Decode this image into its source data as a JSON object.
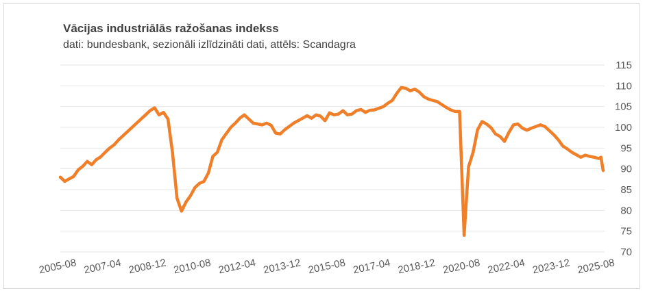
{
  "chart_data": {
    "type": "line",
    "title": "Vācijas industriālās ražošanas indekss",
    "subtitle": "dati: bundesbank, sezionāli izlīdzināti dati, attēls: Scandagra",
    "xlabel": "",
    "ylabel": "",
    "ylim": [
      70,
      115
    ],
    "y_ticks": [
      115,
      110,
      105,
      100,
      95,
      90,
      85,
      80,
      75,
      70
    ],
    "x_tick_labels": [
      "2005-08",
      "2007-04",
      "2008-12",
      "2010-08",
      "2012-04",
      "2013-12",
      "2015-08",
      "2017-04",
      "2018-12",
      "2020-08",
      "2022-04",
      "2023-12",
      "2025-08"
    ],
    "grid": true,
    "line_color": "#f07f2a",
    "series": [
      {
        "name": "Ražošanas indekss",
        "points": [
          [
            "2005-08",
            88.0
          ],
          [
            "2005-10",
            87.0
          ],
          [
            "2005-12",
            87.6
          ],
          [
            "2006-02",
            88.2
          ],
          [
            "2006-04",
            89.8
          ],
          [
            "2006-06",
            90.6
          ],
          [
            "2006-08",
            91.8
          ],
          [
            "2006-10",
            91.0
          ],
          [
            "2006-12",
            92.2
          ],
          [
            "2007-02",
            92.9
          ],
          [
            "2007-04",
            94.0
          ],
          [
            "2007-06",
            95.0
          ],
          [
            "2007-08",
            95.8
          ],
          [
            "2007-10",
            97.0
          ],
          [
            "2007-12",
            98.0
          ],
          [
            "2008-02",
            99.0
          ],
          [
            "2008-04",
            100.0
          ],
          [
            "2008-06",
            101.0
          ],
          [
            "2008-08",
            102.0
          ],
          [
            "2008-10",
            103.0
          ],
          [
            "2008-12",
            104.0
          ],
          [
            "2009-02",
            104.7
          ],
          [
            "2009-04",
            103.0
          ],
          [
            "2009-06",
            103.6
          ],
          [
            "2009-08",
            102.0
          ],
          [
            "2009-10",
            94.0
          ],
          [
            "2009-12",
            83.0
          ],
          [
            "2010-02",
            79.8
          ],
          [
            "2010-04",
            82.0
          ],
          [
            "2010-06",
            83.5
          ],
          [
            "2010-08",
            85.5
          ],
          [
            "2010-10",
            86.5
          ],
          [
            "2010-12",
            87.0
          ],
          [
            "2011-02",
            89.0
          ],
          [
            "2011-04",
            93.0
          ],
          [
            "2011-06",
            94.0
          ],
          [
            "2011-08",
            97.0
          ],
          [
            "2011-10",
            98.5
          ],
          [
            "2011-12",
            100.0
          ],
          [
            "2012-02",
            101.0
          ],
          [
            "2012-04",
            102.2
          ],
          [
            "2012-06",
            103.0
          ],
          [
            "2012-08",
            102.0
          ],
          [
            "2012-10",
            101.0
          ],
          [
            "2012-12",
            100.8
          ],
          [
            "2013-02",
            100.6
          ],
          [
            "2013-04",
            101.0
          ],
          [
            "2013-06",
            100.5
          ],
          [
            "2013-08",
            98.6
          ],
          [
            "2013-10",
            98.4
          ],
          [
            "2013-12",
            99.4
          ],
          [
            "2014-02",
            100.2
          ],
          [
            "2014-04",
            101.0
          ],
          [
            "2014-06",
            101.6
          ],
          [
            "2014-08",
            102.2
          ],
          [
            "2014-10",
            102.8
          ],
          [
            "2014-12",
            102.2
          ],
          [
            "2015-02",
            103.0
          ],
          [
            "2015-04",
            102.7
          ],
          [
            "2015-06",
            101.6
          ],
          [
            "2015-08",
            103.5
          ],
          [
            "2015-10",
            103.0
          ],
          [
            "2015-12",
            103.2
          ],
          [
            "2016-02",
            104.0
          ],
          [
            "2016-04",
            103.0
          ],
          [
            "2016-06",
            103.2
          ],
          [
            "2016-08",
            104.0
          ],
          [
            "2016-10",
            104.3
          ],
          [
            "2016-12",
            103.6
          ],
          [
            "2017-02",
            104.1
          ],
          [
            "2017-04",
            104.2
          ],
          [
            "2017-06",
            104.6
          ],
          [
            "2017-08",
            105.0
          ],
          [
            "2017-10",
            105.8
          ],
          [
            "2017-12",
            106.5
          ],
          [
            "2018-02",
            108.2
          ],
          [
            "2018-04",
            109.6
          ],
          [
            "2018-06",
            109.4
          ],
          [
            "2018-08",
            108.8
          ],
          [
            "2018-10",
            109.2
          ],
          [
            "2018-12",
            108.5
          ],
          [
            "2019-02",
            107.4
          ],
          [
            "2019-04",
            106.8
          ],
          [
            "2019-06",
            106.5
          ],
          [
            "2019-08",
            106.2
          ],
          [
            "2019-10",
            105.5
          ],
          [
            "2019-12",
            104.8
          ],
          [
            "2020-02",
            104.2
          ],
          [
            "2020-04",
            103.8
          ],
          [
            "2020-06",
            103.8
          ],
          [
            "2020-08",
            74.0
          ],
          [
            "2020-10",
            90.5
          ],
          [
            "2020-12",
            94.0
          ],
          [
            "2021-02",
            99.4
          ],
          [
            "2021-04",
            101.4
          ],
          [
            "2021-06",
            100.8
          ],
          [
            "2021-08",
            99.9
          ],
          [
            "2021-10",
            98.4
          ],
          [
            "2021-12",
            97.8
          ],
          [
            "2022-02",
            96.6
          ],
          [
            "2022-04",
            98.8
          ],
          [
            "2022-06",
            100.6
          ],
          [
            "2022-08",
            100.8
          ],
          [
            "2022-10",
            99.8
          ],
          [
            "2022-12",
            99.3
          ],
          [
            "2023-02",
            99.8
          ],
          [
            "2023-04",
            100.2
          ],
          [
            "2023-06",
            100.6
          ],
          [
            "2023-08",
            100.2
          ],
          [
            "2023-10",
            99.2
          ],
          [
            "2023-12",
            98.2
          ],
          [
            "2024-02",
            97.0
          ],
          [
            "2024-04",
            95.5
          ],
          [
            "2024-06",
            94.8
          ],
          [
            "2024-08",
            94.0
          ],
          [
            "2024-10",
            93.4
          ],
          [
            "2024-12",
            92.8
          ],
          [
            "2025-02",
            93.3
          ],
          [
            "2025-04",
            93.0
          ],
          [
            "2025-06",
            92.8
          ],
          [
            "2025-08",
            92.5
          ],
          [
            "2025-09",
            92.8
          ],
          [
            "2025-10",
            89.6
          ]
        ]
      }
    ]
  }
}
